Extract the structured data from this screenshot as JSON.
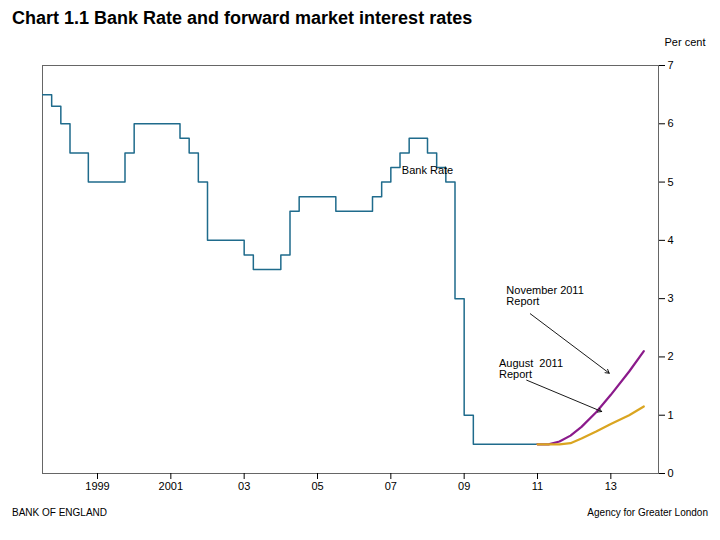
{
  "chart_data": {
    "type": "line",
    "title": "Chart 1.1  Bank Rate and forward market interest rates",
    "ylabel": "Per cent",
    "xlim": [
      1997.5,
      2014.3
    ],
    "xticks": [
      1999,
      2001,
      {
        "value": 2003,
        "label": "03"
      },
      {
        "value": 2005,
        "label": "05"
      },
      {
        "value": 2007,
        "label": "07"
      },
      {
        "value": 2009,
        "label": "09"
      },
      {
        "value": 2011,
        "label": "11"
      },
      {
        "value": 2013,
        "label": "13"
      }
    ],
    "ylim": [
      0,
      7
    ],
    "yticks": [
      0,
      1,
      2,
      3,
      4,
      5,
      6,
      7
    ],
    "series": [
      {
        "type": "step",
        "color": "#1F6B8C",
        "x": [
          1997.5,
          1997.6,
          1997.75,
          1998.0,
          1998.25,
          1998.5,
          1998.75,
          1999.0,
          1999.25,
          1999.5,
          1999.75,
          2000.0,
          2000.25,
          2000.5,
          2000.75,
          2001.0,
          2001.25,
          2001.5,
          2001.75,
          2002.0,
          2002.25,
          2002.5,
          2002.75,
          2003.0,
          2003.25,
          2003.5,
          2003.75,
          2004.0,
          2004.25,
          2004.5,
          2004.75,
          2005.0,
          2005.25,
          2005.5,
          2005.75,
          2006.0,
          2006.25,
          2006.5,
          2006.75,
          2007.0,
          2007.25,
          2007.5,
          2007.75,
          2008.0,
          2008.25,
          2008.5,
          2008.75,
          2009.0,
          2009.25,
          2009.5,
          2009.75,
          2010.0,
          2010.25,
          2010.5,
          2010.75,
          2011.0
        ],
        "values": [
          6.5,
          6.5,
          6.3,
          6.0,
          5.5,
          5.5,
          5.0,
          5.0,
          5.0,
          5.0,
          5.5,
          6.0,
          6.0,
          6.0,
          6.0,
          6.0,
          5.75,
          5.5,
          5.0,
          4.0,
          4.0,
          4.0,
          4.0,
          3.75,
          3.5,
          3.5,
          3.5,
          3.75,
          4.5,
          4.75,
          4.75,
          4.75,
          4.75,
          4.5,
          4.5,
          4.5,
          4.5,
          4.75,
          5.0,
          5.25,
          5.5,
          5.75,
          5.75,
          5.5,
          5.25,
          5.0,
          3.0,
          1.0,
          0.5,
          0.5,
          0.5,
          0.5,
          0.5,
          0.5,
          0.5,
          0.5
        ]
      },
      {
        "type": "line",
        "color": "#8B1A8B",
        "x": [
          2011.0,
          2011.3,
          2011.6,
          2011.9,
          2012.2,
          2012.6,
          2013.0,
          2013.5,
          2013.9
        ],
        "values": [
          0.5,
          0.5,
          0.55,
          0.65,
          0.8,
          1.05,
          1.35,
          1.75,
          2.1
        ]
      },
      {
        "type": "line",
        "color": "#DAA520",
        "x": [
          2011.0,
          2011.3,
          2011.6,
          2011.9,
          2012.2,
          2012.6,
          2013.0,
          2013.5,
          2013.9
        ],
        "values": [
          0.5,
          0.5,
          0.5,
          0.52,
          0.6,
          0.72,
          0.85,
          1.0,
          1.15
        ]
      }
    ],
    "annotations": [
      {
        "text": "Bank Rate",
        "x": 2007.3,
        "y": 5.2
      },
      {
        "text": "November 2011\nReport",
        "x": 2010.15,
        "y": 3.05,
        "arrow_x": 2013.0,
        "arrow_y": 1.7
      },
      {
        "text": "August  2011\nReport",
        "x": 2009.95,
        "y": 1.8,
        "arrow_x": 2012.8,
        "arrow_y": 1.05
      }
    ],
    "footer_left": "BANK OF ENGLAND",
    "footer_right": "Agency for Greater London"
  }
}
